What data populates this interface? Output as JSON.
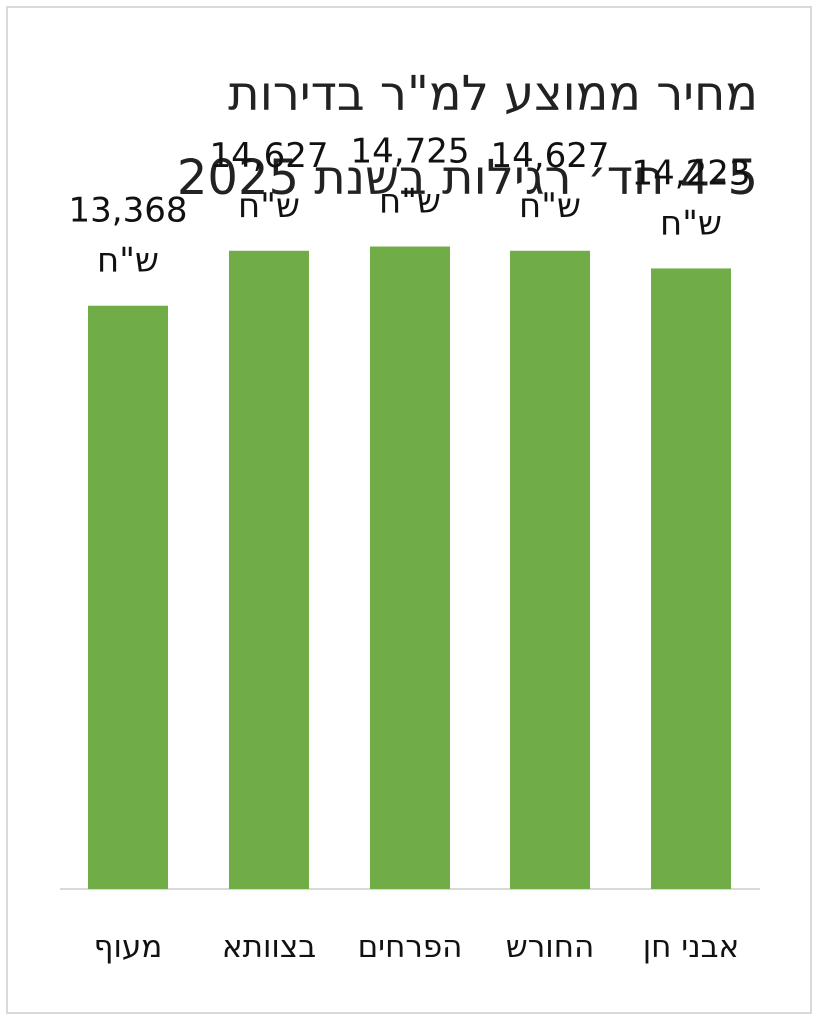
{
  "chart_data": {
    "type": "bar",
    "title_lines": [
      "מחיר ממוצע למ\"ר בדירות",
      "4-5 חד׳ רגילות בשנת 2025"
    ],
    "categories": [
      "מעוף",
      "בצוותא",
      "הפרחים",
      "החורש",
      "אבני חן"
    ],
    "values": [
      13368,
      14627,
      14725,
      14627,
      14223
    ],
    "value_labels": [
      "13,368",
      "14,627",
      "14,725",
      "14,627",
      "14,223"
    ],
    "unit_label": "ש\"ח",
    "xlabel": "",
    "ylabel": "",
    "ylim": [
      0,
      19000
    ],
    "grid": false,
    "legend": "none",
    "bar_color": "#70ad47",
    "axis_color": "#d9d9d9"
  }
}
